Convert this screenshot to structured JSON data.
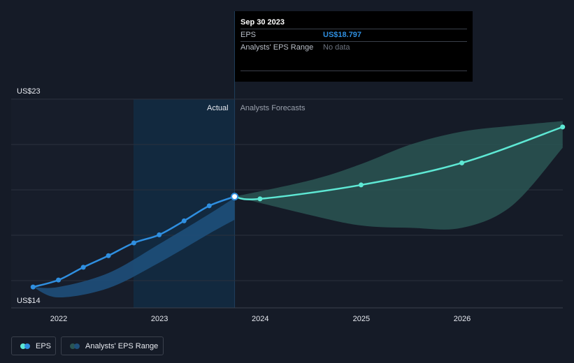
{
  "tooltip": {
    "date": "Sep 30 2023",
    "eps_label": "EPS",
    "eps_value": "US$18.797",
    "range_label": "Analysts' EPS Range",
    "range_value": "No data"
  },
  "regions": {
    "actual": "Actual",
    "forecast": "Analysts Forecasts"
  },
  "legend": {
    "eps": "EPS",
    "range": "Analysts' EPS Range"
  },
  "colors": {
    "background": "#151b27",
    "eps_line": "#2f8fe0",
    "forecast_line": "#5ee8d4",
    "range_past": "#1e4f7a",
    "range_forecast": "#2a5553",
    "highlight_band": "#12293f",
    "grid": "#2b313d"
  },
  "chart_data": {
    "type": "line",
    "y_tick_labels": [
      "US$23",
      "US$14"
    ],
    "ylim": [
      14,
      23
    ],
    "x_ticks": [
      "2022",
      "2023",
      "2024",
      "2025",
      "2026"
    ],
    "series": [
      {
        "name": "EPS",
        "x": [
          "2021-09-30",
          "2021-12-31",
          "2022-03-31",
          "2022-06-30",
          "2022-09-30",
          "2022-12-31",
          "2023-03-31",
          "2023-06-30",
          "2023-09-30"
        ],
        "values": [
          14.9,
          15.2,
          15.75,
          16.25,
          16.8,
          17.15,
          17.75,
          18.4,
          18.797
        ]
      },
      {
        "name": "Analysts' EPS Range",
        "x": [
          "2023-09-30",
          "2023-12-31",
          "2024-12-31",
          "2025-12-31",
          "2026-12-31"
        ],
        "values": [
          18.797,
          18.7,
          19.3,
          20.25,
          21.8
        ]
      }
    ],
    "range_past": {
      "x": [
        "2021-09-30",
        "2021-12-31",
        "2022-06-30",
        "2022-12-31",
        "2023-06-30",
        "2023-09-30"
      ],
      "low": [
        14.9,
        14.45,
        14.85,
        15.95,
        17.2,
        17.8
      ],
      "high": [
        14.9,
        14.9,
        15.5,
        16.75,
        18.05,
        18.75
      ]
    },
    "range_forecast": {
      "x": [
        "2023-09-30",
        "2024-06-30",
        "2024-12-31",
        "2025-06-30",
        "2025-12-31",
        "2026-06-30",
        "2026-12-31"
      ],
      "low": [
        18.797,
        18.0,
        17.55,
        17.45,
        17.45,
        18.4,
        20.9
      ],
      "high": [
        18.797,
        19.5,
        20.2,
        21.05,
        21.6,
        21.85,
        22.05
      ]
    },
    "actual_until": "2023-09-30",
    "grid": true
  }
}
